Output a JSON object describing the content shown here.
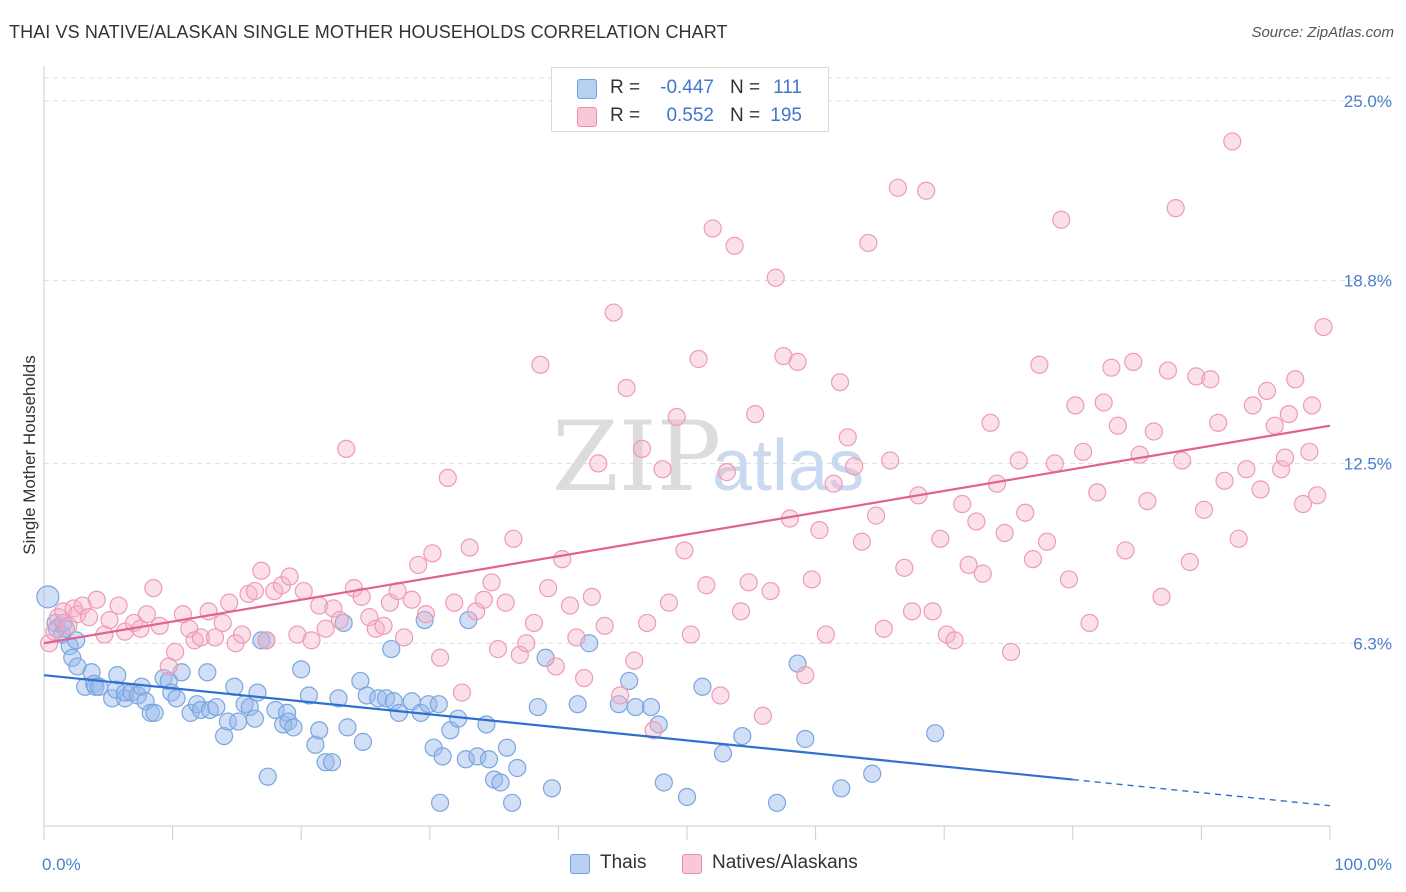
{
  "header": {
    "title": "THAI VS NATIVE/ALASKAN SINGLE MOTHER HOUSEHOLDS CORRELATION CHART",
    "source": "Source: ZipAtlas.com"
  },
  "watermark": {
    "zip": "ZIP",
    "atlas": "atlas"
  },
  "legend": {
    "rows": [
      {
        "r_label": "R =",
        "r_value": "-0.447",
        "n_label": "N =",
        "n_value": "111",
        "color": "#a9c7ee",
        "border": "#6f9fdc"
      },
      {
        "r_label": "R =",
        "r_value": "0.552",
        "n_label": "N =",
        "n_value": "195",
        "color": "#f6bccd",
        "border": "#e890ab"
      }
    ]
  },
  "bottom_legend": {
    "thais": "Thais",
    "natives": "Natives/Alaskans"
  },
  "colors": {
    "thai_fill": "rgba(150,185,236,0.45)",
    "thai_stroke": "#7aa6e0",
    "thai_line": "#2f6fd0",
    "native_fill": "rgba(245,178,200,0.40)",
    "native_stroke": "#ee9bb6",
    "native_line": "#e0628e",
    "grid": "#dddddd",
    "tick_label": "#4a7fcc"
  },
  "chart_data": {
    "type": "scatter",
    "title": "THAI VS NATIVE/ALASKAN SINGLE MOTHER HOUSEHOLDS CORRELATION CHART",
    "xlabel": "",
    "ylabel": "Single Mother Households",
    "xlim": [
      0,
      100
    ],
    "ylim": [
      0,
      26.2
    ],
    "x_tick_labels": [
      "0.0%",
      "100.0%"
    ],
    "y_ticks": [
      6.3,
      12.5,
      18.8,
      25.0
    ],
    "y_tick_labels": [
      "6.3%",
      "12.5%",
      "18.8%",
      "25.0%"
    ],
    "grid": "horizontal dashed",
    "legend_position": "top-center",
    "series": [
      {
        "name": "Thais",
        "r": -0.447,
        "n": 111,
        "trend": {
          "x0": 0,
          "y0": 5.2,
          "x1": 80,
          "y1": 1.6,
          "dashed_to": {
            "x": 100,
            "y": 0.7
          }
        },
        "points": [
          [
            0.3,
            7.9
          ],
          [
            0.9,
            7.0
          ],
          [
            1.0,
            6.8
          ],
          [
            1.4,
            6.6
          ],
          [
            1.5,
            7.0
          ],
          [
            1.7,
            6.8
          ],
          [
            2.0,
            6.2
          ],
          [
            2.2,
            5.8
          ],
          [
            2.5,
            6.4
          ],
          [
            2.6,
            5.5
          ],
          [
            3.2,
            4.8
          ],
          [
            3.7,
            5.3
          ],
          [
            3.9,
            4.9
          ],
          [
            4.0,
            4.8
          ],
          [
            4.3,
            4.8
          ],
          [
            5.3,
            4.4
          ],
          [
            5.6,
            4.7
          ],
          [
            5.7,
            5.2
          ],
          [
            6.3,
            4.4
          ],
          [
            6.3,
            4.6
          ],
          [
            6.8,
            4.6
          ],
          [
            7.3,
            4.5
          ],
          [
            7.6,
            4.8
          ],
          [
            7.9,
            4.3
          ],
          [
            8.3,
            3.9
          ],
          [
            8.6,
            3.9
          ],
          [
            9.3,
            5.1
          ],
          [
            9.7,
            5.0
          ],
          [
            9.9,
            4.6
          ],
          [
            10.3,
            4.4
          ],
          [
            10.7,
            5.3
          ],
          [
            11.4,
            3.9
          ],
          [
            11.9,
            4.2
          ],
          [
            12.2,
            4.0
          ],
          [
            12.7,
            5.3
          ],
          [
            12.9,
            4.0
          ],
          [
            13.4,
            4.1
          ],
          [
            14.0,
            3.1
          ],
          [
            14.3,
            3.6
          ],
          [
            14.8,
            4.8
          ],
          [
            15.1,
            3.6
          ],
          [
            15.6,
            4.2
          ],
          [
            16.0,
            4.1
          ],
          [
            16.4,
            3.7
          ],
          [
            16.6,
            4.6
          ],
          [
            16.9,
            6.4
          ],
          [
            17.3,
            6.4
          ],
          [
            17.4,
            1.7
          ],
          [
            18.0,
            4.0
          ],
          [
            18.6,
            3.5
          ],
          [
            18.9,
            3.9
          ],
          [
            19.0,
            3.6
          ],
          [
            19.4,
            3.4
          ],
          [
            20.0,
            5.4
          ],
          [
            20.6,
            4.5
          ],
          [
            21.1,
            2.8
          ],
          [
            21.4,
            3.3
          ],
          [
            21.9,
            2.2
          ],
          [
            22.4,
            2.2
          ],
          [
            22.9,
            4.4
          ],
          [
            23.3,
            7.0
          ],
          [
            23.6,
            3.4
          ],
          [
            24.6,
            5.0
          ],
          [
            24.8,
            2.9
          ],
          [
            25.1,
            4.5
          ],
          [
            26.0,
            4.4
          ],
          [
            26.6,
            4.4
          ],
          [
            27.0,
            6.1
          ],
          [
            27.2,
            4.3
          ],
          [
            27.6,
            3.9
          ],
          [
            28.6,
            4.3
          ],
          [
            29.3,
            3.9
          ],
          [
            29.6,
            7.1
          ],
          [
            29.9,
            4.2
          ],
          [
            30.3,
            2.7
          ],
          [
            30.7,
            4.2
          ],
          [
            30.8,
            0.8
          ],
          [
            31.0,
            2.4
          ],
          [
            31.6,
            3.3
          ],
          [
            32.2,
            3.7
          ],
          [
            32.8,
            2.3
          ],
          [
            33.0,
            7.1
          ],
          [
            33.7,
            2.4
          ],
          [
            34.4,
            3.5
          ],
          [
            34.6,
            2.3
          ],
          [
            35.0,
            1.6
          ],
          [
            35.5,
            1.5
          ],
          [
            36.0,
            2.7
          ],
          [
            36.4,
            0.8
          ],
          [
            36.8,
            2.0
          ],
          [
            38.4,
            4.1
          ],
          [
            39.0,
            5.8
          ],
          [
            39.5,
            1.3
          ],
          [
            41.5,
            4.2
          ],
          [
            42.4,
            6.3
          ],
          [
            44.7,
            4.2
          ],
          [
            45.5,
            5.0
          ],
          [
            46.0,
            4.1
          ],
          [
            47.2,
            4.1
          ],
          [
            47.8,
            3.5
          ],
          [
            48.2,
            1.5
          ],
          [
            50.0,
            1.0
          ],
          [
            51.2,
            4.8
          ],
          [
            52.8,
            2.5
          ],
          [
            54.3,
            3.1
          ],
          [
            57.0,
            0.8
          ],
          [
            58.6,
            5.6
          ],
          [
            59.2,
            3.0
          ],
          [
            62.0,
            1.3
          ],
          [
            64.4,
            1.8
          ],
          [
            69.3,
            3.2
          ]
        ]
      },
      {
        "name": "Natives/Alaskans",
        "r": 0.552,
        "n": 195,
        "trend": {
          "x0": 0,
          "y0": 6.3,
          "x1": 100,
          "y1": 13.8
        },
        "points": [
          [
            0.4,
            6.3
          ],
          [
            0.8,
            6.7
          ],
          [
            1.1,
            7.2
          ],
          [
            1.5,
            7.4
          ],
          [
            1.9,
            6.9
          ],
          [
            2.3,
            7.5
          ],
          [
            2.6,
            7.3
          ],
          [
            3.0,
            7.6
          ],
          [
            3.5,
            7.2
          ],
          [
            4.1,
            7.8
          ],
          [
            4.7,
            6.6
          ],
          [
            5.1,
            7.1
          ],
          [
            5.8,
            7.6
          ],
          [
            6.3,
            6.7
          ],
          [
            7.0,
            7.0
          ],
          [
            7.5,
            6.8
          ],
          [
            8.0,
            7.3
          ],
          [
            8.5,
            8.2
          ],
          [
            9.0,
            6.9
          ],
          [
            9.7,
            5.5
          ],
          [
            10.2,
            6.0
          ],
          [
            10.8,
            7.3
          ],
          [
            11.3,
            6.8
          ],
          [
            11.7,
            6.4
          ],
          [
            12.2,
            6.5
          ],
          [
            12.8,
            7.4
          ],
          [
            13.3,
            6.5
          ],
          [
            13.9,
            7.0
          ],
          [
            14.4,
            7.7
          ],
          [
            14.9,
            6.3
          ],
          [
            15.4,
            6.6
          ],
          [
            15.9,
            8.0
          ],
          [
            16.4,
            8.1
          ],
          [
            16.9,
            8.8
          ],
          [
            17.3,
            6.4
          ],
          [
            17.9,
            8.1
          ],
          [
            18.5,
            8.3
          ],
          [
            19.1,
            8.6
          ],
          [
            19.7,
            6.6
          ],
          [
            20.2,
            8.1
          ],
          [
            20.8,
            6.4
          ],
          [
            21.4,
            7.6
          ],
          [
            21.9,
            6.8
          ],
          [
            22.5,
            7.5
          ],
          [
            23.0,
            7.1
          ],
          [
            23.5,
            13.0
          ],
          [
            24.1,
            8.2
          ],
          [
            24.7,
            7.9
          ],
          [
            25.3,
            7.2
          ],
          [
            25.8,
            6.8
          ],
          [
            26.4,
            6.9
          ],
          [
            26.9,
            7.7
          ],
          [
            27.5,
            8.1
          ],
          [
            28.0,
            6.5
          ],
          [
            28.6,
            7.8
          ],
          [
            29.1,
            9.0
          ],
          [
            29.7,
            7.3
          ],
          [
            30.2,
            9.4
          ],
          [
            30.8,
            5.8
          ],
          [
            31.4,
            12.0
          ],
          [
            31.9,
            7.7
          ],
          [
            32.5,
            4.6
          ],
          [
            33.1,
            9.6
          ],
          [
            33.6,
            7.4
          ],
          [
            34.2,
            7.8
          ],
          [
            34.8,
            8.4
          ],
          [
            35.3,
            6.1
          ],
          [
            35.9,
            7.7
          ],
          [
            36.5,
            9.9
          ],
          [
            37.0,
            5.9
          ],
          [
            37.5,
            6.3
          ],
          [
            38.1,
            7.0
          ],
          [
            38.6,
            15.9
          ],
          [
            39.2,
            8.2
          ],
          [
            39.8,
            5.5
          ],
          [
            40.3,
            9.2
          ],
          [
            40.9,
            7.6
          ],
          [
            41.4,
            6.5
          ],
          [
            42.0,
            5.1
          ],
          [
            42.6,
            7.9
          ],
          [
            43.1,
            12.5
          ],
          [
            43.6,
            6.9
          ],
          [
            44.3,
            17.7
          ],
          [
            44.8,
            4.5
          ],
          [
            45.3,
            15.1
          ],
          [
            45.9,
            5.7
          ],
          [
            46.5,
            13.0
          ],
          [
            46.9,
            7.0
          ],
          [
            47.4,
            3.3
          ],
          [
            48.1,
            12.3
          ],
          [
            48.6,
            7.7
          ],
          [
            49.2,
            14.1
          ],
          [
            49.8,
            9.5
          ],
          [
            50.3,
            6.6
          ],
          [
            50.9,
            16.1
          ],
          [
            51.5,
            8.3
          ],
          [
            52.0,
            20.6
          ],
          [
            52.6,
            4.5
          ],
          [
            53.1,
            12.2
          ],
          [
            53.7,
            20.0
          ],
          [
            54.2,
            7.4
          ],
          [
            54.8,
            8.4
          ],
          [
            55.3,
            14.2
          ],
          [
            55.9,
            3.8
          ],
          [
            56.5,
            8.1
          ],
          [
            56.9,
            18.9
          ],
          [
            57.5,
            16.2
          ],
          [
            58.0,
            10.6
          ],
          [
            58.6,
            16.0
          ],
          [
            59.2,
            5.2
          ],
          [
            59.7,
            8.5
          ],
          [
            60.3,
            10.2
          ],
          [
            60.8,
            6.6
          ],
          [
            61.4,
            11.8
          ],
          [
            61.9,
            15.3
          ],
          [
            62.5,
            13.4
          ],
          [
            63.0,
            12.4
          ],
          [
            63.6,
            9.8
          ],
          [
            64.1,
            20.1
          ],
          [
            64.7,
            10.7
          ],
          [
            65.3,
            6.8
          ],
          [
            65.8,
            12.6
          ],
          [
            66.4,
            22.0
          ],
          [
            66.9,
            8.9
          ],
          [
            67.5,
            7.4
          ],
          [
            68.0,
            11.4
          ],
          [
            68.6,
            21.9
          ],
          [
            69.1,
            7.4
          ],
          [
            69.7,
            9.9
          ],
          [
            70.2,
            6.6
          ],
          [
            70.8,
            6.4
          ],
          [
            71.4,
            11.1
          ],
          [
            71.9,
            9.0
          ],
          [
            72.5,
            10.5
          ],
          [
            73.0,
            8.7
          ],
          [
            73.6,
            13.9
          ],
          [
            74.1,
            11.8
          ],
          [
            74.7,
            10.1
          ],
          [
            75.2,
            6.0
          ],
          [
            75.8,
            12.6
          ],
          [
            76.3,
            10.8
          ],
          [
            76.9,
            9.2
          ],
          [
            77.4,
            15.9
          ],
          [
            78.0,
            9.8
          ],
          [
            78.6,
            12.5
          ],
          [
            79.1,
            20.9
          ],
          [
            79.7,
            8.5
          ],
          [
            80.2,
            14.5
          ],
          [
            80.8,
            12.9
          ],
          [
            81.3,
            7.0
          ],
          [
            81.9,
            11.5
          ],
          [
            82.4,
            14.6
          ],
          [
            83.0,
            15.8
          ],
          [
            83.5,
            13.8
          ],
          [
            84.1,
            9.5
          ],
          [
            84.7,
            16.0
          ],
          [
            85.2,
            12.8
          ],
          [
            85.8,
            11.2
          ],
          [
            86.3,
            13.6
          ],
          [
            86.9,
            7.9
          ],
          [
            87.4,
            15.7
          ],
          [
            88.0,
            21.3
          ],
          [
            88.5,
            12.6
          ],
          [
            89.1,
            9.1
          ],
          [
            89.6,
            15.5
          ],
          [
            90.2,
            10.9
          ],
          [
            90.7,
            15.4
          ],
          [
            91.3,
            13.9
          ],
          [
            91.8,
            11.9
          ],
          [
            92.4,
            23.6
          ],
          [
            92.9,
            9.9
          ],
          [
            93.5,
            12.3
          ],
          [
            94.0,
            14.5
          ],
          [
            94.6,
            11.6
          ],
          [
            95.1,
            15.0
          ],
          [
            95.7,
            13.8
          ],
          [
            96.2,
            12.3
          ],
          [
            96.8,
            14.2
          ],
          [
            97.3,
            15.4
          ],
          [
            97.9,
            11.1
          ],
          [
            98.4,
            12.9
          ],
          [
            98.6,
            14.5
          ],
          [
            99.0,
            11.4
          ],
          [
            99.5,
            17.2
          ],
          [
            96.5,
            12.7
          ]
        ]
      }
    ]
  }
}
